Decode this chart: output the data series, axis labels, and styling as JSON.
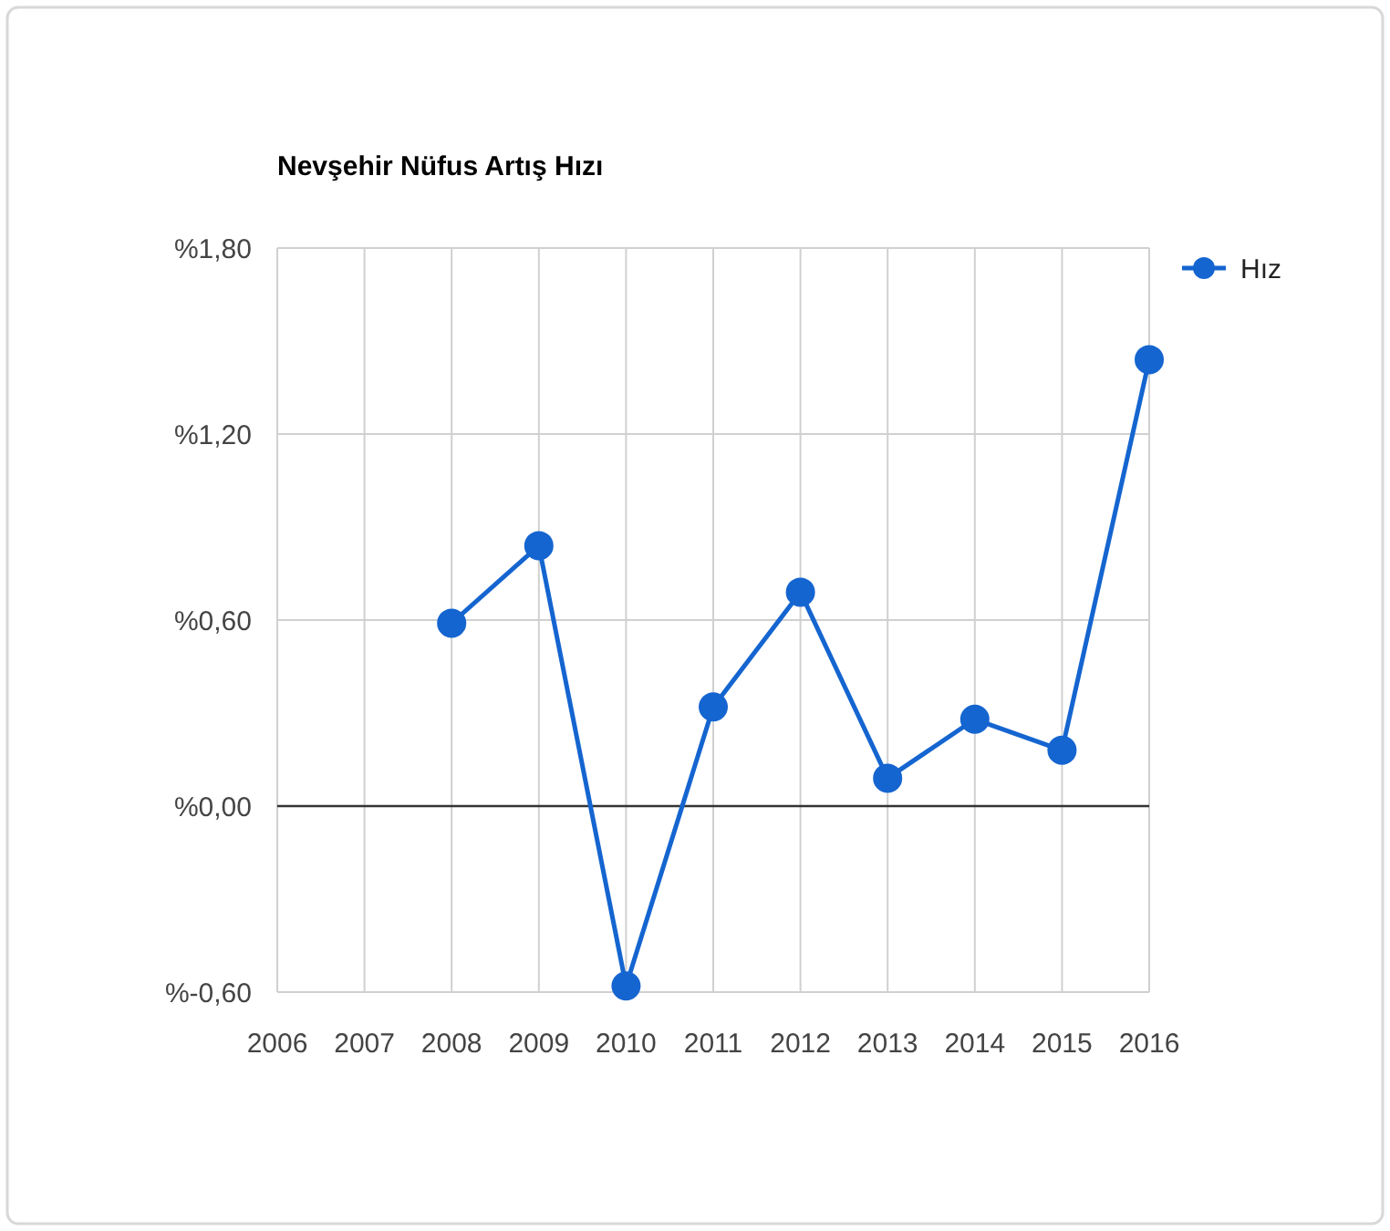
{
  "chart_data": {
    "type": "line",
    "title": "Nevşehir Nüfus Artış Hızı",
    "x": [
      2008,
      2009,
      2010,
      2011,
      2012,
      2013,
      2014,
      2015,
      2016
    ],
    "series": [
      {
        "name": "Hız",
        "color": "#1565d0",
        "values": [
          0.59,
          0.84,
          -0.58,
          0.32,
          0.69,
          0.09,
          0.28,
          0.18,
          1.44
        ]
      }
    ],
    "xlim": [
      2006,
      2016
    ],
    "xticks": [
      2006,
      2007,
      2008,
      2009,
      2010,
      2011,
      2012,
      2013,
      2014,
      2015,
      2016
    ],
    "ylim": [
      -0.6,
      1.8
    ],
    "yticks": [
      {
        "value": -0.6,
        "label": "%-0,60"
      },
      {
        "value": 0,
        "label": "%0,00"
      },
      {
        "value": 0.6,
        "label": "%0,60"
      },
      {
        "value": 1.2,
        "label": "%1,20"
      },
      {
        "value": 1.8,
        "label": "%1,80"
      }
    ],
    "ref_lines": [
      {
        "axis": "y",
        "value": 0,
        "color": "#333333"
      }
    ],
    "grid": true,
    "legend": "top right",
    "marker": "circle",
    "line_style": "solid"
  }
}
